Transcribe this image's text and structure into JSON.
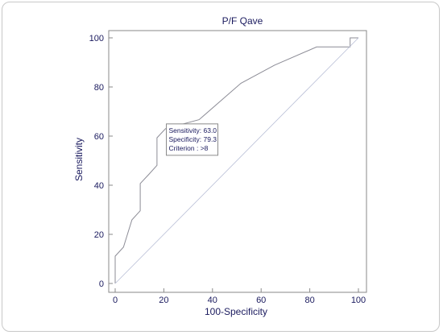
{
  "chart_data": {
    "type": "line",
    "title": "P/F Qave",
    "xlabel": "100-Specificity",
    "ylabel": "Sensitivity",
    "xlim": [
      0,
      100
    ],
    "ylim": [
      0,
      100
    ],
    "x_ticks": [
      "0",
      "20",
      "40",
      "60",
      "80",
      "100"
    ],
    "y_ticks": [
      "0",
      "20",
      "40",
      "60",
      "80",
      "100"
    ],
    "grid": false,
    "series": [
      {
        "name": "",
        "x": [
          0,
          0,
          3.4,
          6.9,
          10.3,
          10.3,
          13.8,
          17.2,
          17.2,
          20.7,
          34.5,
          51.7,
          65.5,
          82.8,
          96.6,
          96.6,
          100
        ],
        "y": [
          0,
          11.1,
          14.8,
          25.9,
          29.6,
          40.7,
          44.4,
          48.1,
          59.3,
          63.0,
          66.7,
          81.5,
          88.9,
          96.3,
          96.3,
          100,
          100
        ],
        "color": "#8c8c96"
      },
      {
        "name": "",
        "x": [
          0,
          100
        ],
        "y": [
          0,
          100
        ],
        "color": "#b8bed6"
      }
    ],
    "annotation": {
      "lines": [
        "Sensitivity: 63.0",
        "Specificity: 79.3",
        "Criterion : >8"
      ],
      "anchor_x": 20.7,
      "anchor_y": 63.0
    }
  }
}
